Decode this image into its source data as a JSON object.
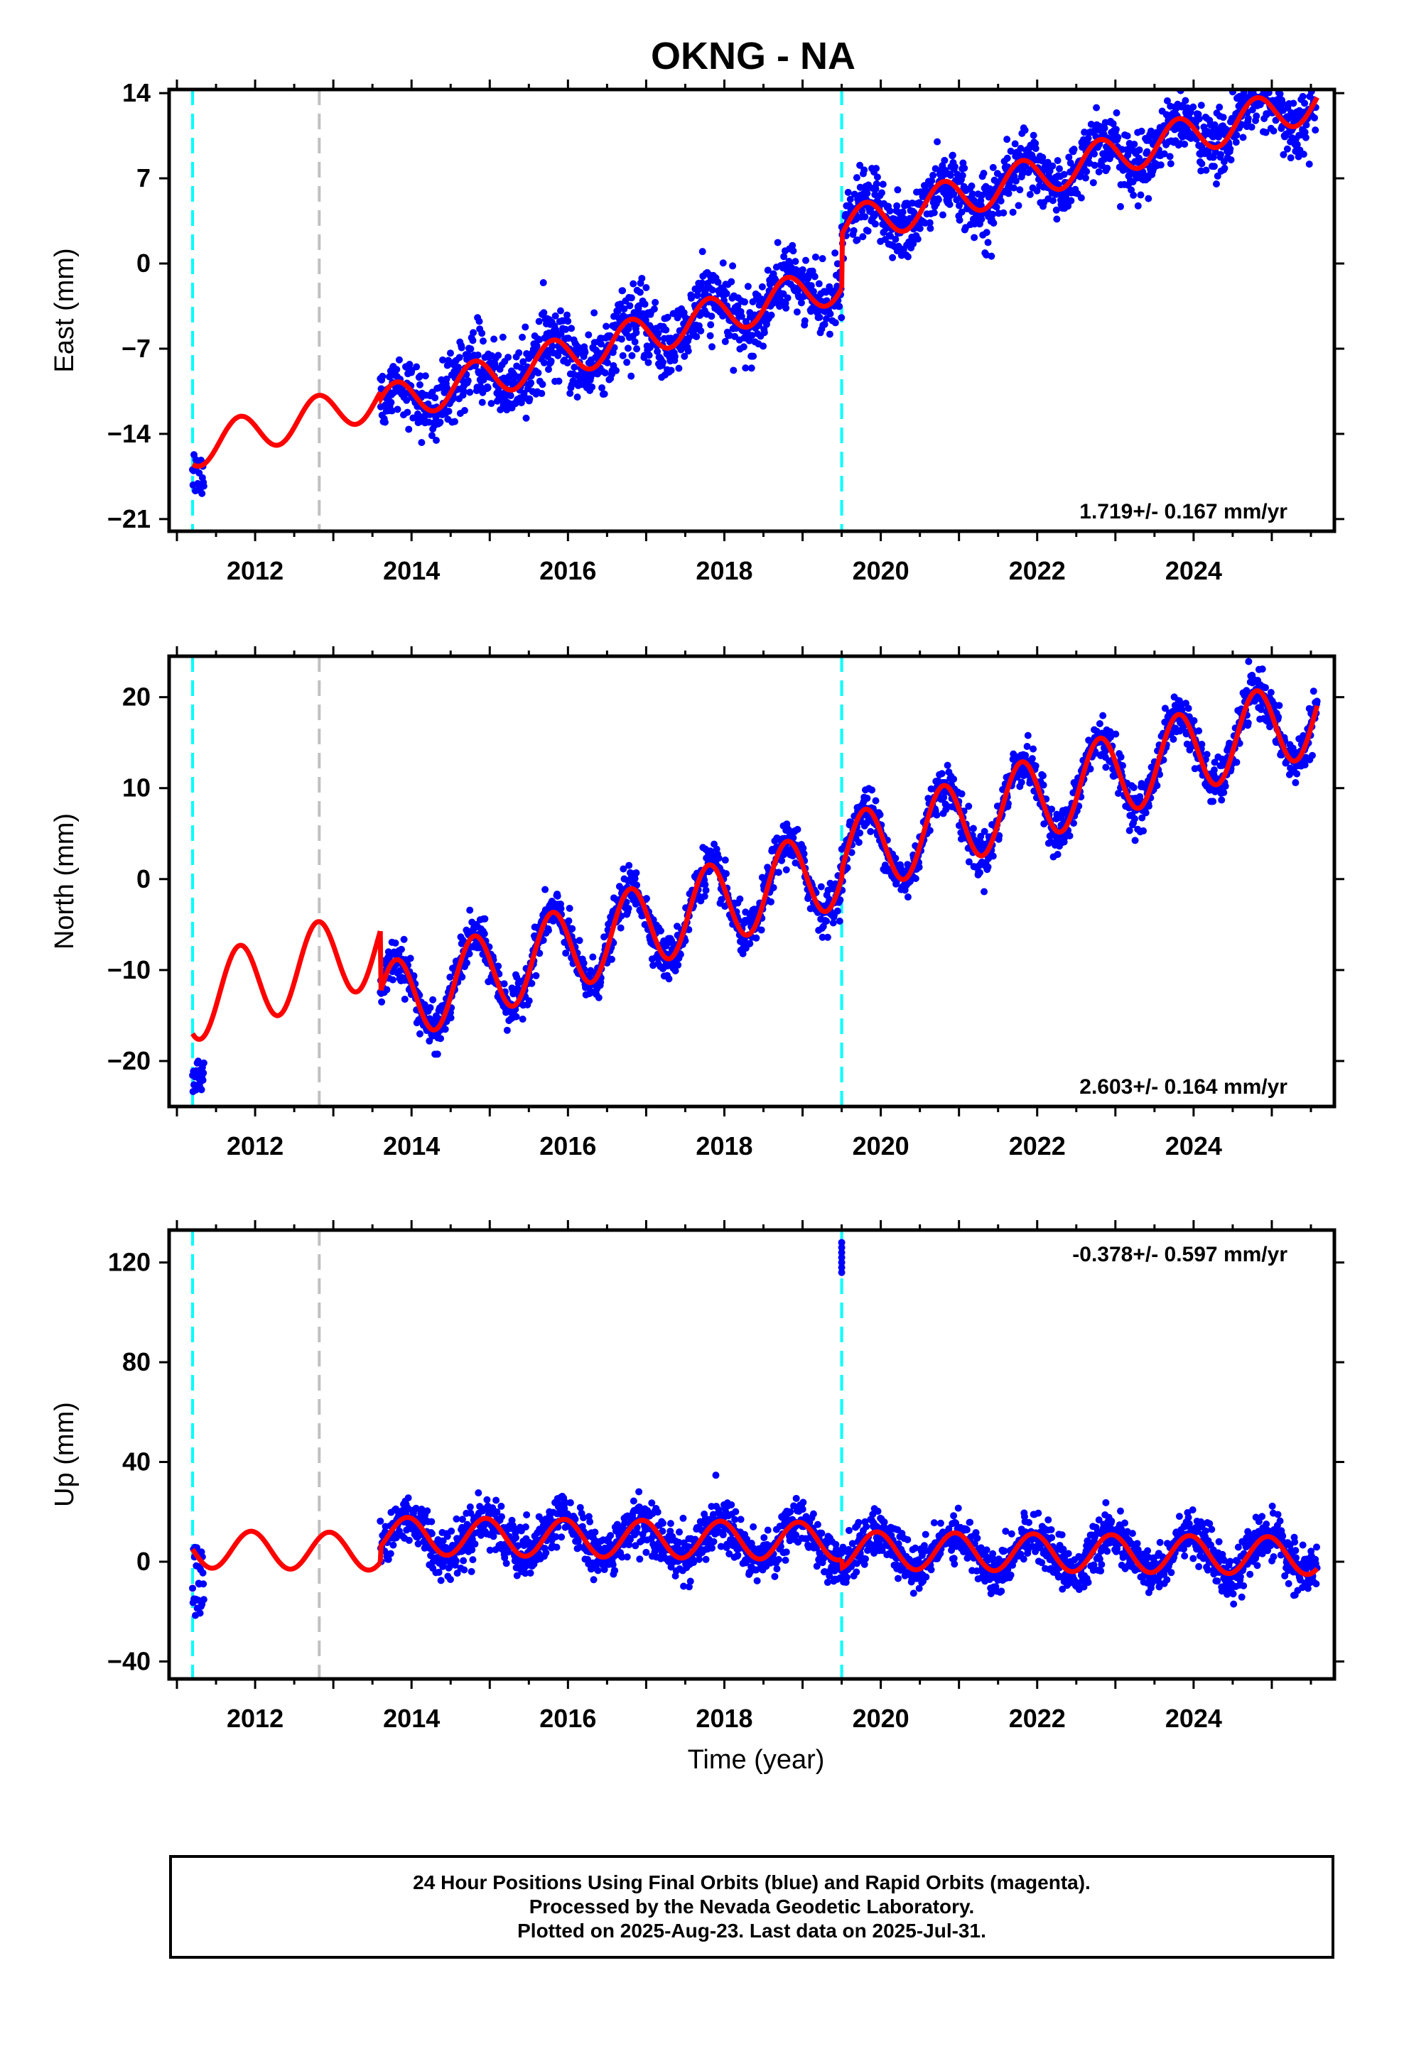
{
  "title": "OKNG - NA",
  "colors": {
    "data": "#0000ff",
    "model": "#ff0000",
    "equipment_change": "#00ffff",
    "other_event": "#c0c0c0"
  },
  "chart_data": [
    {
      "type": "scatter",
      "component": "east",
      "ylabel": "East (mm)",
      "xlabel": "",
      "xlim": [
        2010.9,
        2025.8
      ],
      "ylim": [
        -22,
        14.3
      ],
      "y_ticks": [
        -21,
        -14,
        -7,
        0,
        7,
        14
      ],
      "y_tick_labels": [
        "−21",
        "−14",
        "−7",
        "0",
        "7",
        "14"
      ],
      "x_ticks": [
        2012,
        2014,
        2016,
        2018,
        2020,
        2022,
        2024
      ],
      "x_tick_labels": [
        "2012",
        "2014",
        "2016",
        "2018",
        "2020",
        "2022",
        "2024"
      ],
      "rate_label": "1.719+/- 0.167 mm/yr",
      "rate_label_position": "bottom-right",
      "vlines": [
        {
          "x": 2011.2,
          "color": "cyan"
        },
        {
          "x": 2012.82,
          "color": "gray"
        },
        {
          "x": 2019.5,
          "color": "cyan"
        }
      ],
      "model": {
        "rate": 1.719,
        "annual_amplitude": 1.6,
        "annual_phase_year": 0.55,
        "segments": [
          {
            "start": 2011.2,
            "end": 2013.6,
            "intercept_at_2011_2": -16.5,
            "data": false
          },
          {
            "start": 2013.6,
            "end": 2019.5,
            "intercept_at_2013_6": -11.2,
            "data": true,
            "scatter_sd": 1.4
          },
          {
            "start": 2019.5,
            "end": 2025.58,
            "intercept_at_2019_5": 2.4,
            "data": true,
            "scatter_sd": 1.3
          }
        ],
        "early_points": {
          "start": 2011.2,
          "end": 2011.35,
          "center": -17.5,
          "spread": 1.8
        }
      }
    },
    {
      "type": "scatter",
      "component": "north",
      "ylabel": "North (mm)",
      "xlabel": "",
      "xlim": [
        2010.9,
        2025.8
      ],
      "ylim": [
        -25,
        24.5
      ],
      "y_ticks": [
        -20,
        -10,
        0,
        10,
        20
      ],
      "y_tick_labels": [
        "−20",
        "−10",
        "0",
        "10",
        "20"
      ],
      "x_ticks": [
        2012,
        2014,
        2016,
        2018,
        2020,
        2022,
        2024
      ],
      "x_tick_labels": [
        "2012",
        "2014",
        "2016",
        "2018",
        "2020",
        "2022",
        "2024"
      ],
      "rate_label": "2.603+/- 0.164 mm/yr",
      "rate_label_position": "bottom-right",
      "vlines": [
        {
          "x": 2011.2,
          "color": "cyan"
        },
        {
          "x": 2012.82,
          "color": "gray"
        },
        {
          "x": 2019.5,
          "color": "cyan"
        }
      ],
      "model": {
        "rate": 2.603,
        "annual_amplitude": 4.5,
        "annual_phase_year": 0.55,
        "segments": [
          {
            "start": 2011.2,
            "end": 2013.6,
            "intercept_at_2011_2": -17.0,
            "data": false
          },
          {
            "start": 2013.6,
            "end": 2019.5,
            "intercept_at_2013_6": -12.5,
            "data": true,
            "scatter_sd": 1.2
          },
          {
            "start": 2019.5,
            "end": 2025.58,
            "intercept_at_2019_5": 1.0,
            "data": true,
            "scatter_sd": 1.2
          }
        ],
        "early_points": {
          "start": 2011.2,
          "end": 2011.35,
          "center": -21.5,
          "spread": 2.0
        }
      }
    },
    {
      "type": "scatter",
      "component": "up",
      "ylabel": "Up (mm)",
      "xlabel": "Time (year)",
      "xlim": [
        2010.9,
        2025.8
      ],
      "ylim": [
        -47,
        133
      ],
      "y_ticks": [
        -40,
        0,
        40,
        80,
        120
      ],
      "y_tick_labels": [
        "−40",
        "0",
        "40",
        "80",
        "120"
      ],
      "x_ticks": [
        2012,
        2014,
        2016,
        2018,
        2020,
        2022,
        2024
      ],
      "x_tick_labels": [
        "2012",
        "2014",
        "2016",
        "2018",
        "2020",
        "2022",
        "2024"
      ],
      "rate_label": "-0.378+/- 0.597 mm/yr",
      "rate_label_position": "top-right",
      "vlines": [
        {
          "x": 2011.2,
          "color": "cyan"
        },
        {
          "x": 2012.82,
          "color": "gray"
        },
        {
          "x": 2019.5,
          "color": "cyan"
        }
      ],
      "model": {
        "rate": -0.378,
        "annual_amplitude": 7.5,
        "annual_phase_year": 0.7,
        "segments": [
          {
            "start": 2011.2,
            "end": 2013.6,
            "intercept_at_2011_2": 5.0,
            "data": false
          },
          {
            "start": 2013.6,
            "end": 2019.5,
            "intercept_at_2013_6": 6.0,
            "data": true,
            "scatter_sd": 5.0
          },
          {
            "start": 2019.5,
            "end": 2025.58,
            "intercept_at_2019_5": -2.5,
            "data": true,
            "scatter_sd": 4.5
          }
        ],
        "early_points": {
          "start": 2011.2,
          "end": 2011.35,
          "center": -8.0,
          "spread": 14.0
        },
        "outliers": [
          {
            "x": 2019.5,
            "y": [
              116,
              118,
              120,
              122,
              124,
              126,
              128
            ]
          }
        ]
      }
    }
  ],
  "footer": {
    "line1": "24 Hour Positions Using Final Orbits (blue) and Rapid Orbits (magenta).",
    "line2": "Processed by the Nevada Geodetic Laboratory.",
    "line3": "Plotted on 2025-Aug-23. Last data on 2025-Jul-31."
  }
}
